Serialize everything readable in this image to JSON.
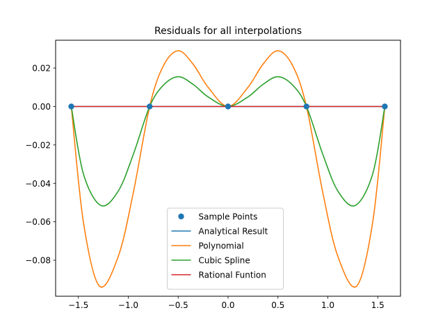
{
  "chart_data": {
    "type": "line",
    "title": "Residuals for all interpolations",
    "xlabel": "",
    "ylabel": "",
    "xlim": [
      -1.7279,
      1.7279
    ],
    "ylim": [
      -0.09876,
      0.03448
    ],
    "xticks": [
      -1.5,
      -1.0,
      -0.5,
      0.0,
      0.5,
      1.0,
      1.5
    ],
    "xtick_labels": [
      "−1.5",
      "−1.0",
      "−0.5",
      "0.0",
      "0.5",
      "1.0",
      "1.5"
    ],
    "yticks": [
      0.02,
      0.0,
      -0.02,
      -0.04,
      -0.06,
      -0.08
    ],
    "ytick_labels": [
      "0.02",
      "0.00",
      "−0.02",
      "−0.04",
      "−0.06",
      "−0.08"
    ],
    "grid": false,
    "legend_position": "lower center",
    "series": [
      {
        "name": "Sample Points",
        "kind": "scatter",
        "color": "#1f77b4",
        "x": [
          -1.5708,
          -0.7854,
          0.0,
          0.7854,
          1.5708
        ],
        "y": [
          0.0,
          0.0,
          0.0,
          0.0,
          0.0
        ]
      },
      {
        "name": "Analytical Result",
        "kind": "line",
        "color": "#1f77b4",
        "x": [
          -1.5708,
          1.5708
        ],
        "y": [
          0.0,
          0.0
        ]
      },
      {
        "name": "Polynomial",
        "kind": "line",
        "color": "#ff7f0e",
        "x": [
          -1.5708,
          -1.45,
          -1.2888,
          -1.1,
          -0.95,
          -0.7854,
          -0.65,
          -0.5,
          -0.35,
          -0.2,
          0.0,
          0.2,
          0.35,
          0.5,
          0.65,
          0.7854,
          0.95,
          1.1,
          1.2888,
          1.45,
          1.5708
        ],
        "y": [
          0.0,
          -0.06,
          -0.0935,
          -0.078,
          -0.045,
          0.0,
          0.021,
          0.029,
          0.022,
          0.01,
          0.0,
          0.01,
          0.022,
          0.029,
          0.021,
          0.0,
          -0.045,
          -0.078,
          -0.0935,
          -0.06,
          0.0
        ]
      },
      {
        "name": "Cubic Spline",
        "kind": "line",
        "color": "#2ca02c",
        "x": [
          -1.5708,
          -1.45,
          -1.275,
          -1.1,
          -0.95,
          -0.7854,
          -0.65,
          -0.5,
          -0.35,
          -0.2,
          0.0,
          0.2,
          0.35,
          0.5,
          0.65,
          0.7854,
          0.95,
          1.1,
          1.275,
          1.45,
          1.5708
        ],
        "y": [
          0.0,
          -0.035,
          -0.0515,
          -0.044,
          -0.025,
          0.0,
          0.011,
          0.0155,
          0.0115,
          0.005,
          0.0,
          0.005,
          0.0115,
          0.0155,
          0.011,
          0.0,
          -0.025,
          -0.044,
          -0.0515,
          -0.035,
          0.0
        ]
      },
      {
        "name": "Rational Funtion",
        "kind": "line",
        "color": "#d62728",
        "x": [
          -1.5708,
          1.5708
        ],
        "y": [
          0.0,
          0.0
        ]
      }
    ]
  }
}
